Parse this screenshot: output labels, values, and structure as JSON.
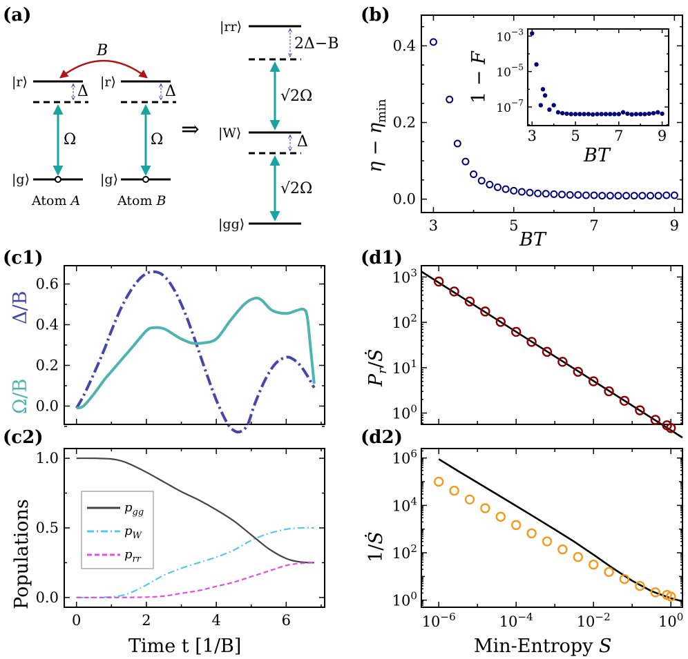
{
  "panel_labels": {
    "a": "(a)",
    "b": "(b)",
    "c1": "(c1)",
    "c2": "(c2)",
    "d1": "(d1)",
    "d2": "(d2)"
  },
  "diagram_a": {
    "coupling": "B",
    "rydberg_state": "|r⟩",
    "ground_state": "|g⟩",
    "detuning": "Δ",
    "rabi": "Ω",
    "atom_a_label": "Atom",
    "atom_a_name": "A",
    "atom_b_label": "Atom",
    "atom_b_name": "B",
    "implies": "⇒",
    "rr_state": "|rr⟩",
    "w_state": "|W⟩",
    "gg_state": "|gg⟩",
    "rr_shift": "2Δ−B",
    "w_shift": "Δ",
    "sqrt2_omega_top": "√2Ω",
    "sqrt2_omega_bottom": "√2Ω",
    "colors": {
      "arrow": "#1aa3a3",
      "coupling": "#b01515",
      "shift": "#3f3fbf"
    }
  },
  "chart_data": [
    {
      "id": "b-main",
      "type": "scatter",
      "xlabel": "BT",
      "ylabel": "η − η_min",
      "xlim": [
        2.7,
        9.2
      ],
      "ylim": [
        -0.035,
        0.48
      ],
      "xticks": [
        3,
        5,
        7,
        9
      ],
      "yticks": [
        0.0,
        0.2,
        0.4
      ],
      "ytick_labels": [
        "0.0",
        "0.2",
        "0.4"
      ],
      "series": [
        {
          "color": "#00007a",
          "marker": "open-circle",
          "x": [
            3.0,
            3.4,
            3.6,
            3.8,
            4.0,
            4.2,
            4.4,
            4.6,
            4.8,
            5.0,
            5.2,
            5.4,
            5.6,
            5.8,
            6.0,
            6.2,
            6.4,
            6.6,
            6.8,
            7.0,
            7.2,
            7.4,
            7.6,
            7.8,
            8.0,
            8.2,
            8.4,
            8.6,
            8.8,
            9.0
          ],
          "y": [
            0.41,
            0.26,
            0.145,
            0.098,
            0.065,
            0.048,
            0.038,
            0.031,
            0.026,
            0.022,
            0.019,
            0.017,
            0.015,
            0.014,
            0.013,
            0.012,
            0.011,
            0.011,
            0.01,
            0.01,
            0.009,
            0.009,
            0.009,
            0.009,
            0.009,
            0.009,
            0.009,
            0.009,
            0.01,
            0.01
          ]
        }
      ]
    },
    {
      "id": "b-inset",
      "type": "scatter",
      "xlabel": "BT",
      "ylabel": "1 − F",
      "log_y": true,
      "xlim": [
        2.8,
        9.3
      ],
      "ylim_exp": [
        -8.05,
        -2.6
      ],
      "xticks": [
        3,
        5,
        7,
        9
      ],
      "yticks_exp": [
        -3,
        -5,
        -7
      ],
      "series": [
        {
          "color": "#00007a",
          "marker": "filled-circle",
          "x": [
            3.0,
            3.2,
            3.4,
            3.5,
            3.6,
            3.8,
            4.0,
            4.2,
            4.4,
            4.6,
            4.8,
            5.0,
            5.2,
            5.4,
            5.6,
            5.8,
            6.0,
            6.2,
            6.4,
            6.6,
            6.8,
            7.0,
            7.2,
            7.4,
            7.6,
            7.8,
            8.0,
            8.2,
            8.4,
            8.6,
            8.8,
            9.0
          ],
          "y_exp": [
            -2.85,
            -4.6,
            -6.9,
            -6.0,
            -6.35,
            -7.15,
            -6.9,
            -7.3,
            -7.35,
            -7.38,
            -7.4,
            -7.4,
            -7.4,
            -7.4,
            -7.4,
            -7.42,
            -7.4,
            -7.4,
            -7.4,
            -7.4,
            -7.4,
            -7.4,
            -7.3,
            -7.38,
            -7.42,
            -7.4,
            -7.4,
            -7.4,
            -7.38,
            -7.35,
            -7.3,
            -7.38
          ]
        }
      ]
    },
    {
      "id": "c1",
      "type": "line",
      "ylabel_left": "Ω/B",
      "ylabel_right": "Δ/B",
      "xlim": [
        -0.35,
        7.1
      ],
      "ylim": [
        -0.09,
        0.69
      ],
      "yticks": [
        0.0,
        0.2,
        0.4,
        0.6
      ],
      "ytick_labels": [
        "0.0",
        "0.2",
        "0.4",
        "0.6"
      ],
      "series": [
        {
          "name": "Ω/B",
          "color": "#4fb3b0",
          "style": "solid",
          "x": [
            0.0,
            0.2,
            0.5,
            0.8,
            1.0,
            1.3,
            1.6,
            2.0,
            2.2,
            2.5,
            2.8,
            3.0,
            3.3,
            3.6,
            4.0,
            4.4,
            4.8,
            5.1,
            5.3,
            5.6,
            6.0,
            6.3,
            6.5,
            6.6,
            6.7,
            6.8
          ],
          "y": [
            -0.01,
            0.0,
            0.06,
            0.13,
            0.17,
            0.23,
            0.29,
            0.37,
            0.385,
            0.38,
            0.35,
            0.33,
            0.31,
            0.31,
            0.33,
            0.42,
            0.5,
            0.53,
            0.52,
            0.47,
            0.455,
            0.47,
            0.475,
            0.44,
            0.28,
            0.11
          ]
        },
        {
          "name": "Δ/B",
          "color": "#4646aa",
          "style": "dashdot",
          "x": [
            0.0,
            0.2,
            0.5,
            0.8,
            1.0,
            1.3,
            1.6,
            1.9,
            2.2,
            2.5,
            2.8,
            3.1,
            3.4,
            3.7,
            4.0,
            4.3,
            4.5,
            4.7,
            4.9,
            5.1,
            5.4,
            5.7,
            6.0,
            6.2,
            6.4,
            6.6,
            6.8
          ],
          "y": [
            -0.01,
            0.05,
            0.16,
            0.28,
            0.37,
            0.49,
            0.58,
            0.64,
            0.66,
            0.64,
            0.57,
            0.46,
            0.32,
            0.17,
            0.03,
            -0.08,
            -0.12,
            -0.125,
            -0.09,
            0.01,
            0.13,
            0.21,
            0.24,
            0.23,
            0.2,
            0.15,
            0.09
          ]
        }
      ]
    },
    {
      "id": "c2",
      "type": "line",
      "xlabel": "Time t [1/B]",
      "ylabel": "Populations",
      "xlim": [
        -0.35,
        7.1
      ],
      "ylim": [
        -0.07,
        1.07
      ],
      "xticks": [
        0,
        2,
        4,
        6
      ],
      "yticks": [
        0.0,
        0.5,
        1.0
      ],
      "ytick_labels": [
        "0.0",
        "0.5",
        "1.0"
      ],
      "legend_position": "center-left",
      "series": [
        {
          "name": "p_gg",
          "legend_main": "p",
          "legend_sub": "gg",
          "color": "#444444",
          "style": "solid",
          "x": [
            0.0,
            0.5,
            1.0,
            1.3,
            1.6,
            2.0,
            2.5,
            3.0,
            3.5,
            4.0,
            4.5,
            5.0,
            5.5,
            6.0,
            6.4,
            6.8
          ],
          "y": [
            1.0,
            1.0,
            0.995,
            0.98,
            0.95,
            0.9,
            0.83,
            0.76,
            0.7,
            0.63,
            0.55,
            0.45,
            0.35,
            0.28,
            0.255,
            0.25
          ]
        },
        {
          "name": "p_W",
          "legend_main": "p",
          "legend_sub": "W",
          "color": "#55c6ee",
          "style": "dashdot",
          "x": [
            0.0,
            0.5,
            1.0,
            1.3,
            1.6,
            2.0,
            2.5,
            3.0,
            3.5,
            4.0,
            4.5,
            5.0,
            5.5,
            6.0,
            6.4,
            6.8
          ],
          "y": [
            0.0,
            0.0,
            0.005,
            0.015,
            0.04,
            0.09,
            0.16,
            0.21,
            0.25,
            0.29,
            0.34,
            0.41,
            0.46,
            0.49,
            0.5,
            0.5
          ]
        },
        {
          "name": "p_rr",
          "legend_main": "p",
          "legend_sub": "rr",
          "color": "#e64ce6",
          "style": "dashed",
          "x": [
            0.0,
            1.0,
            2.0,
            2.5,
            3.0,
            3.5,
            4.0,
            4.5,
            5.0,
            5.5,
            6.0,
            6.4,
            6.8
          ],
          "y": [
            0.0,
            0.0,
            0.003,
            0.01,
            0.03,
            0.05,
            0.08,
            0.11,
            0.15,
            0.19,
            0.23,
            0.245,
            0.25
          ]
        }
      ]
    },
    {
      "id": "d1",
      "type": "scatter",
      "ylabel": "P_r/Ṡ",
      "log_x": true,
      "log_y": true,
      "xlim_exp": [
        -6.45,
        0.3
      ],
      "ylim_exp": [
        -0.25,
        3.25
      ],
      "yticks_exp": [
        0,
        1,
        2,
        3
      ],
      "series": [
        {
          "color": "#8b0000",
          "marker": "open-circle",
          "x_exp": [
            -6.0,
            -5.6,
            -5.2,
            -4.8,
            -4.4,
            -4.0,
            -3.6,
            -3.2,
            -2.8,
            -2.4,
            -2.0,
            -1.6,
            -1.2,
            -0.8,
            -0.4,
            -0.1,
            0.0
          ],
          "y_exp": [
            2.9,
            2.68,
            2.46,
            2.24,
            2.01,
            1.79,
            1.57,
            1.35,
            1.13,
            0.91,
            0.7,
            0.48,
            0.27,
            0.06,
            -0.15,
            -0.27,
            -0.33
          ]
        },
        {
          "color": "#000000",
          "style": "solid",
          "name": "fit",
          "x_exp": [
            -6.45,
            0.3
          ],
          "y_exp": [
            3.12,
            -0.54
          ]
        }
      ]
    },
    {
      "id": "d2",
      "type": "scatter",
      "xlabel": "Min-Entropy S",
      "ylabel": "1/Ṡ",
      "log_x": true,
      "log_y": true,
      "xlim_exp": [
        -6.45,
        0.3
      ],
      "ylim_exp": [
        -0.3,
        6.4
      ],
      "xticks_exp": [
        -6,
        -4,
        -2,
        0
      ],
      "yticks_exp": [
        0,
        2,
        4,
        6
      ],
      "series": [
        {
          "color": "#f39a1a",
          "marker": "open-circle",
          "x_exp": [
            -6.0,
            -5.6,
            -5.2,
            -4.8,
            -4.4,
            -4.0,
            -3.6,
            -3.2,
            -2.8,
            -2.4,
            -2.0,
            -1.6,
            -1.2,
            -0.8,
            -0.4,
            -0.1,
            0.0
          ],
          "y_exp": [
            5.0,
            4.62,
            4.25,
            3.88,
            3.52,
            3.17,
            2.82,
            2.48,
            2.14,
            1.82,
            1.5,
            1.19,
            0.89,
            0.6,
            0.33,
            0.22,
            0.15
          ]
        },
        {
          "color": "#000000",
          "style": "solid",
          "name": "bound",
          "x_exp": [
            -6.0,
            -5.5,
            -5.0,
            -4.5,
            -4.0,
            -3.5,
            -3.0,
            -2.5,
            -2.0,
            -1.5,
            -1.0,
            -0.5,
            0.0,
            0.3
          ],
          "y_exp": [
            5.95,
            5.45,
            4.96,
            4.47,
            3.98,
            3.48,
            2.98,
            2.47,
            1.92,
            1.35,
            0.82,
            0.38,
            0.08,
            -0.05
          ]
        }
      ]
    }
  ]
}
